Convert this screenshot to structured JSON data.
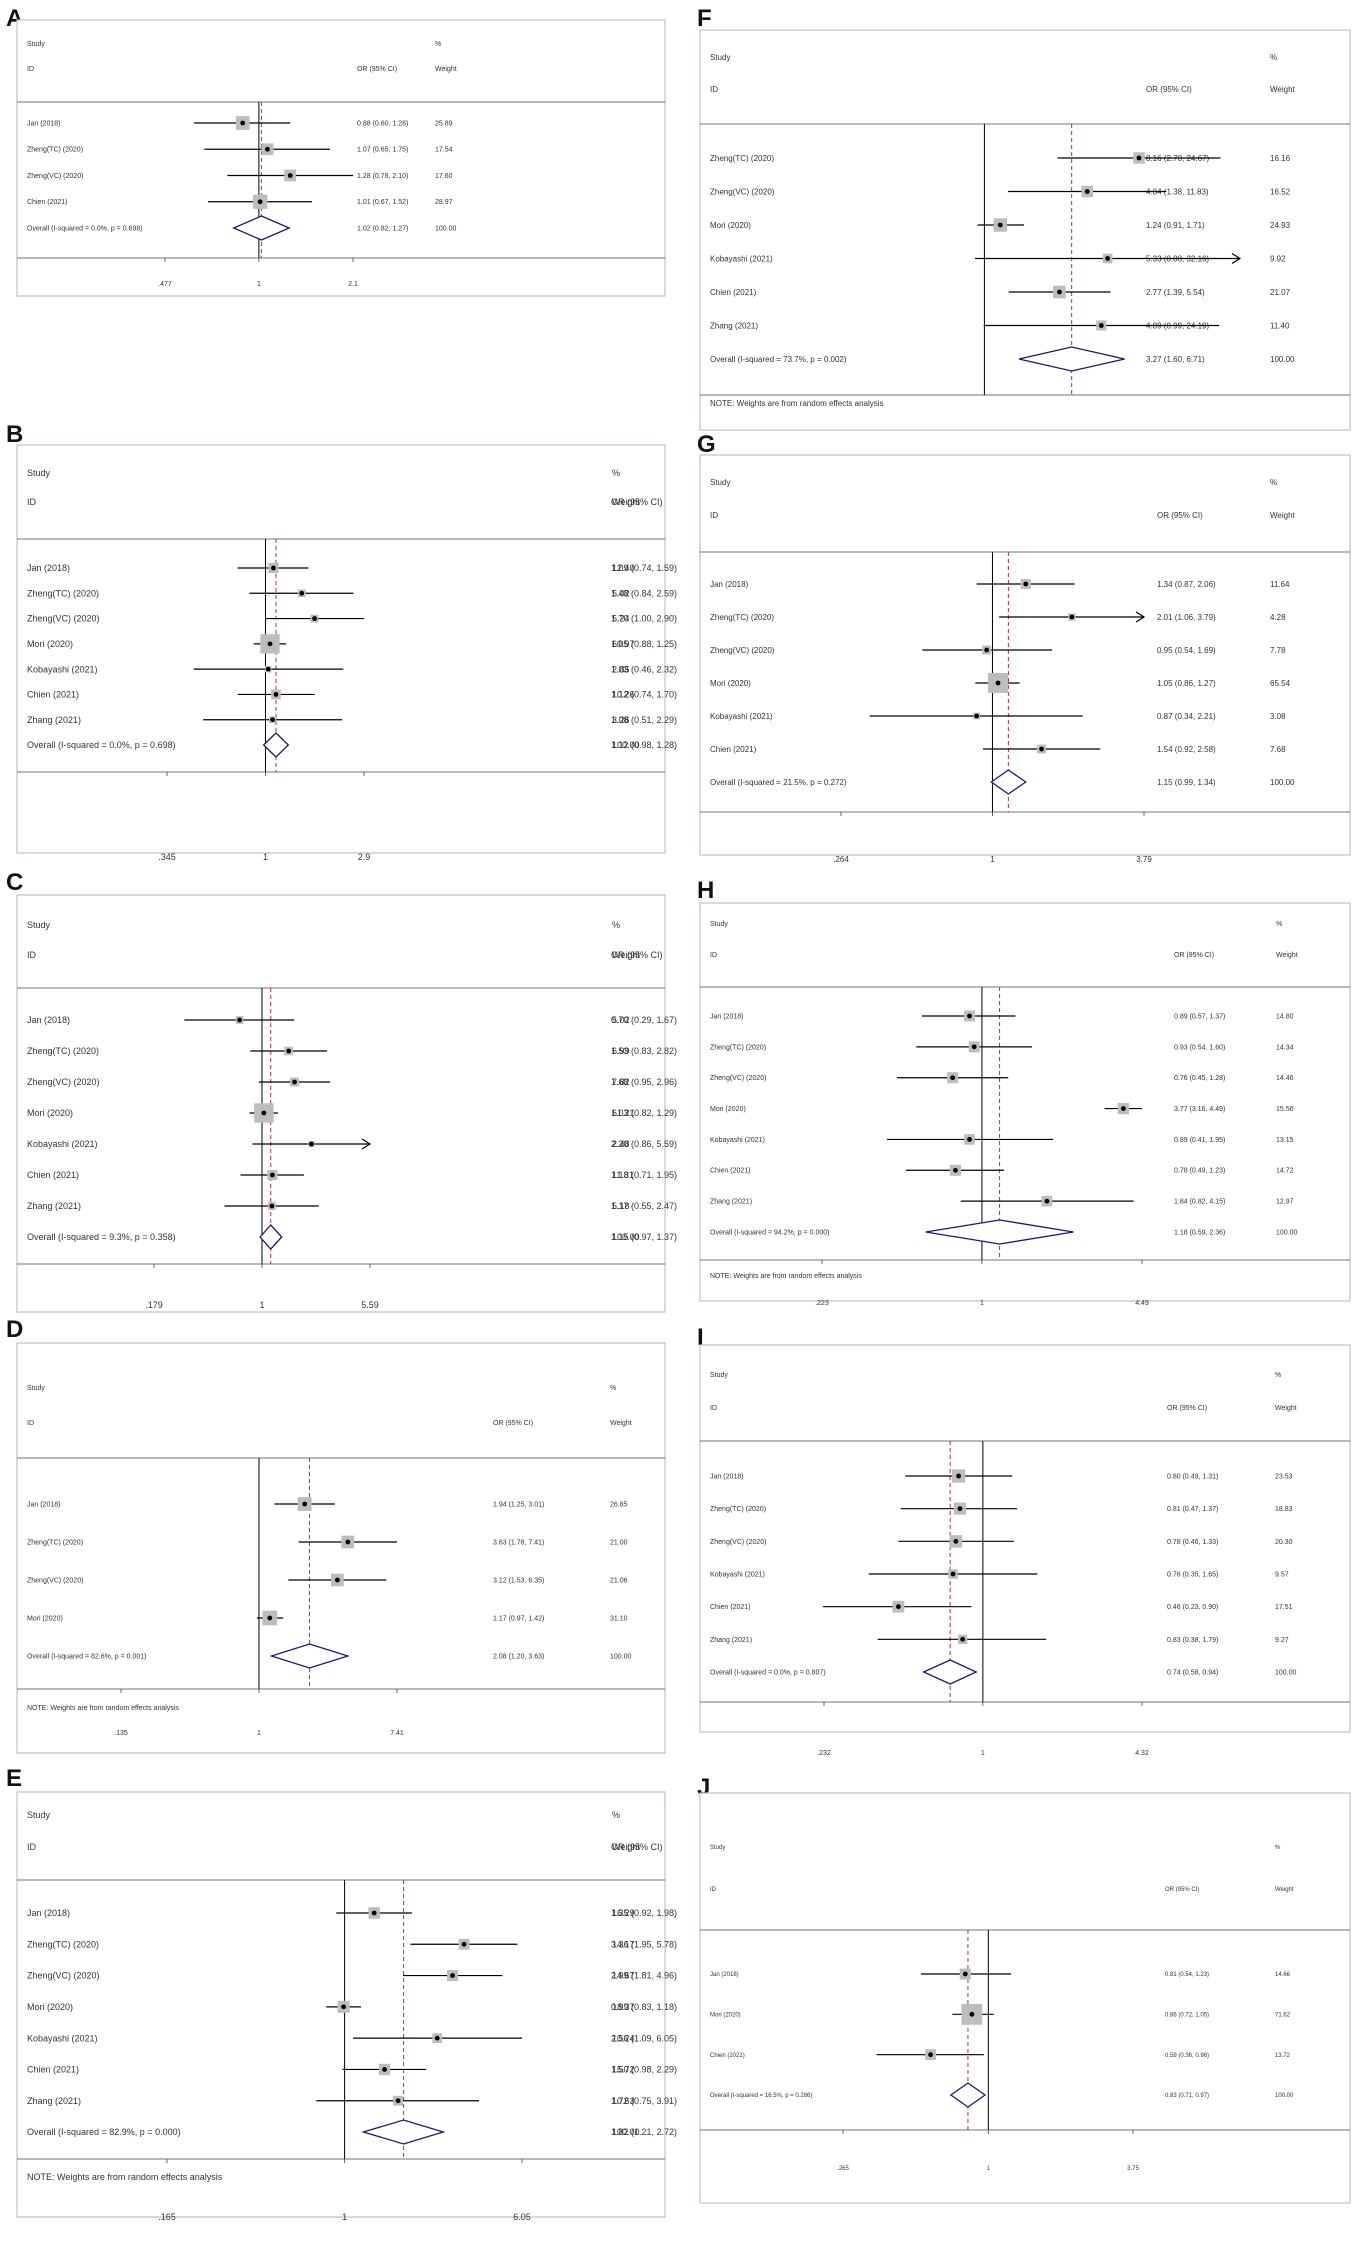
{
  "figure": {
    "background": "#ffffff",
    "panel_bg": "#ffffff",
    "frame_color": "#b8c4cc",
    "line_color": "#000000",
    "ref_color": "#b03040",
    "diamond_color": "#1a1a6e",
    "box_color": "#bdbdbd"
  },
  "chart_data": [
    {
      "type": "forest",
      "panel": "A",
      "measure": "OR (95% CI)",
      "header": {
        "study": "Study",
        "id": "ID",
        "pct": "%",
        "weight": "Weight"
      },
      "xlim": [
        0.477,
        2.1
      ],
      "ticks": [
        {
          "v": 0.477,
          "t": ".477"
        },
        {
          "v": 1,
          "t": "1"
        },
        {
          "v": 2.1,
          "t": "2.1"
        }
      ],
      "note": "",
      "studies": [
        {
          "name": "Jan  (2018)",
          "or": 0.88,
          "lo": 0.6,
          "hi": 1.28,
          "ci": "0.88 (0.60, 1.28)",
          "weight": "25.89",
          "w": 25.89
        },
        {
          "name": "Zheng(TC) (2020)",
          "or": 1.07,
          "lo": 0.65,
          "hi": 1.75,
          "ci": "1.07 (0.65, 1.75)",
          "weight": "17.54",
          "w": 17.54
        },
        {
          "name": "Zheng(VC) (2020)",
          "or": 1.28,
          "lo": 0.78,
          "hi": 2.1,
          "ci": "1.28 (0.78, 2.10)",
          "weight": "17.60",
          "w": 17.6
        },
        {
          "name": "Chien  (2021)",
          "or": 1.01,
          "lo": 0.67,
          "hi": 1.52,
          "ci": "1.01 (0.67, 1.52)",
          "weight": "28.97",
          "w": 28.97
        }
      ],
      "overall": {
        "label": "Overall  (I-squared = 0.0%, p = 0.698)",
        "or": 1.02,
        "lo": 0.82,
        "hi": 1.27,
        "ci": "1.02 (0.82, 1.27)",
        "weight": "100.00"
      }
    },
    {
      "type": "forest",
      "panel": "B",
      "measure": "OR (95% CI)",
      "header": {
        "study": "Study",
        "id": "ID",
        "pct": "%",
        "weight": "Weight"
      },
      "xlim": [
        0.345,
        2.9
      ],
      "ticks": [
        {
          "v": 0.345,
          "t": ".345"
        },
        {
          "v": 1,
          "t": "1"
        },
        {
          "v": 2.9,
          "t": "2.9"
        }
      ],
      "note": "",
      "studies": [
        {
          "name": "Jan  (2018)",
          "or": 1.09,
          "lo": 0.74,
          "hi": 1.59,
          "ci": "1.09 (0.74, 1.59)",
          "weight": "12.40",
          "w": 12.4
        },
        {
          "name": "Zheng(TC) (2020)",
          "or": 1.48,
          "lo": 0.84,
          "hi": 2.59,
          "ci": "1.48 (0.84, 2.59)",
          "weight": "5.02",
          "w": 5.02
        },
        {
          "name": "Zheng(VC) (2020)",
          "or": 1.7,
          "lo": 1.0,
          "hi": 2.9,
          "ci": "1.70 (1.00, 2.90)",
          "weight": "5.24",
          "w": 5.24
        },
        {
          "name": "Mori (2020)",
          "or": 1.05,
          "lo": 0.88,
          "hi": 1.25,
          "ci": "1.05 (0.88, 1.25)",
          "weight": "60.97",
          "w": 60.97
        },
        {
          "name": "Kobayashi  (2021)",
          "or": 1.03,
          "lo": 0.46,
          "hi": 2.32,
          "ci": "1.03 (0.46, 2.32)",
          "weight": "2.85",
          "w": 2.85
        },
        {
          "name": "Chien  (2021)",
          "or": 1.12,
          "lo": 0.74,
          "hi": 1.7,
          "ci": "1.12 (0.74, 1.70)",
          "weight": "10.26",
          "w": 10.26
        },
        {
          "name": "Zhang  (2021)",
          "or": 1.08,
          "lo": 0.51,
          "hi": 2.29,
          "ci": "1.08 (0.51, 2.29)",
          "weight": "3.26",
          "w": 3.26
        }
      ],
      "overall": {
        "label": "Overall  (I-squared = 0.0%, p = 0.698)",
        "or": 1.12,
        "lo": 0.98,
        "hi": 1.28,
        "ci": "1.12 (0.98, 1.28)",
        "weight": "100.00"
      }
    },
    {
      "type": "forest",
      "panel": "C",
      "measure": "OR (95% CI)",
      "header": {
        "study": "Study",
        "id": "ID",
        "pct": "%",
        "weight": "Weight"
      },
      "xlim": [
        0.179,
        5.59
      ],
      "ticks": [
        {
          "v": 0.179,
          "t": ".179"
        },
        {
          "v": 1,
          "t": "1"
        },
        {
          "v": 5.59,
          "t": "5.59"
        }
      ],
      "note": "",
      "studies": [
        {
          "name": "Jan  (2018)",
          "or": 0.7,
          "lo": 0.29,
          "hi": 1.67,
          "ci": "0.70 (0.29, 1.67)",
          "weight": "5.02",
          "w": 5.02
        },
        {
          "name": "Zheng(TC) (2020)",
          "or": 1.53,
          "lo": 0.83,
          "hi": 2.82,
          "ci": "1.53 (0.83, 2.82)",
          "weight": "6.99",
          "w": 6.99
        },
        {
          "name": "Zheng(VC) (2020)",
          "or": 1.68,
          "lo": 0.95,
          "hi": 2.96,
          "ci": "1.68 (0.95, 2.96)",
          "weight": "7.82",
          "w": 7.82
        },
        {
          "name": "Mori (2020)",
          "or": 1.03,
          "lo": 0.82,
          "hi": 1.29,
          "ci": "1.03 (0.82, 1.29)",
          "weight": "61.21",
          "w": 61.21
        },
        {
          "name": "Kobayashi  (2021)",
          "or": 2.2,
          "lo": 0.86,
          "hi": 5.59,
          "ci": "2.20 (0.86, 5.59)",
          "weight": "2.48",
          "w": 2.48,
          "arrow": true
        },
        {
          "name": "Chien  (2021)",
          "or": 1.18,
          "lo": 0.71,
          "hi": 1.95,
          "ci": "1.18 (0.71, 1.95)",
          "weight": "11.31",
          "w": 11.31
        },
        {
          "name": "Zhang  (2021)",
          "or": 1.17,
          "lo": 0.55,
          "hi": 2.47,
          "ci": "1.17 (0.55, 2.47)",
          "weight": "5.18",
          "w": 5.18
        }
      ],
      "overall": {
        "label": "Overall  (I-squared = 9.3%, p = 0.358)",
        "or": 1.15,
        "lo": 0.97,
        "hi": 1.37,
        "ci": "1.15 (0.97, 1.37)",
        "weight": "100.00"
      }
    },
    {
      "type": "forest",
      "panel": "D",
      "measure": "OR (95% CI)",
      "header": {
        "study": "Study",
        "id": "ID",
        "pct": "%",
        "weight": "Weight"
      },
      "xlim": [
        0.135,
        7.41
      ],
      "ticks": [
        {
          "v": 0.135,
          "t": ".135"
        },
        {
          "v": 1,
          "t": "1"
        },
        {
          "v": 7.41,
          "t": "7.41"
        }
      ],
      "note": "NOTE: Weights are from random effects analysis",
      "studies": [
        {
          "name": "Jan  (2018)",
          "or": 1.94,
          "lo": 1.25,
          "hi": 3.01,
          "ci": "1.94 (1.25, 3.01)",
          "weight": "26.85",
          "w": 26.85
        },
        {
          "name": "Zheng(TC) (2020)",
          "or": 3.63,
          "lo": 1.78,
          "hi": 7.41,
          "ci": "3.63 (1.78, 7.41)",
          "weight": "21.00",
          "w": 21.0
        },
        {
          "name": "Zheng(VC) (2020)",
          "or": 3.12,
          "lo": 1.53,
          "hi": 6.35,
          "ci": "3.12 (1.53, 6.35)",
          "weight": "21.06",
          "w": 21.06
        },
        {
          "name": "Mori (2020)",
          "or": 1.17,
          "lo": 0.97,
          "hi": 1.42,
          "ci": "1.17 (0.97, 1.42)",
          "weight": "31.10",
          "w": 31.1
        }
      ],
      "overall": {
        "label": "Overall  (I-squared = 82.6%, p = 0.001)",
        "or": 2.08,
        "lo": 1.2,
        "hi": 3.63,
        "ci": "2.08 (1.20, 3.63)",
        "weight": "100.00"
      }
    },
    {
      "type": "forest",
      "panel": "E",
      "measure": "OR (95% CI)",
      "header": {
        "study": "Study",
        "id": "ID",
        "pct": "%",
        "weight": "Weight"
      },
      "xlim": [
        0.165,
        6.05
      ],
      "ticks": [
        {
          "v": 0.165,
          "t": ".165"
        },
        {
          "v": 1,
          "t": "1"
        },
        {
          "v": 6.05,
          "t": "6.05"
        }
      ],
      "note": "NOTE: Weights are from random effects analysis",
      "studies": [
        {
          "name": "Jan  (2018)",
          "or": 1.35,
          "lo": 0.92,
          "hi": 1.98,
          "ci": "1.35 (0.92, 1.98)",
          "weight": "16.29",
          "w": 16.29
        },
        {
          "name": "Zheng(TC) (2020)",
          "or": 3.36,
          "lo": 1.95,
          "hi": 5.78,
          "ci": "3.36 (1.95, 5.78)",
          "weight": "14.17",
          "w": 14.17
        },
        {
          "name": "Zheng(VC) (2020)",
          "or": 2.99,
          "lo": 1.81,
          "hi": 4.96,
          "ci": "2.99 (1.81, 4.96)",
          "weight": "14.67",
          "w": 14.67
        },
        {
          "name": "Mori (2020)",
          "or": 0.99,
          "lo": 0.83,
          "hi": 1.18,
          "ci": "0.99 (0.83, 1.18)",
          "weight": "18.37",
          "w": 18.37
        },
        {
          "name": "Kobayashi  (2021)",
          "or": 2.56,
          "lo": 1.09,
          "hi": 6.05,
          "ci": "2.56 (1.09, 6.05)",
          "weight": "10.24",
          "w": 10.24
        },
        {
          "name": "Chien  (2021)",
          "or": 1.5,
          "lo": 0.98,
          "hi": 2.29,
          "ci": "1.50 (0.98, 2.29)",
          "weight": "15.72",
          "w": 15.72
        },
        {
          "name": "Zhang  (2021)",
          "or": 1.72,
          "lo": 0.75,
          "hi": 3.91,
          "ci": "1.72 (0.75, 3.91)",
          "weight": "10.63",
          "w": 10.63
        }
      ],
      "overall": {
        "label": "Overall  (I-squared = 82.9%, p = 0.000)",
        "or": 1.82,
        "lo": 1.21,
        "hi": 2.72,
        "ci": "1.82 (1.21, 2.72)",
        "weight": "100.00"
      }
    },
    {
      "type": "forest",
      "panel": "F",
      "measure": "OR (95% CI)",
      "header": {
        "study": "Study",
        "id": "ID",
        "pct": "%",
        "weight": "Weight"
      },
      "xlim": [
        0.88,
        32.16
      ],
      "ticks": [],
      "note": "NOTE: Weights are from random effects analysis",
      "studies": [
        {
          "name": "Zheng(TC) (2020)",
          "or": 8.16,
          "lo": 2.7,
          "hi": 24.67,
          "ci": "8.16 (2.70, 24.67)",
          "weight": "16.16",
          "w": 16.16
        },
        {
          "name": "Zheng(VC) (2020)",
          "or": 4.04,
          "lo": 1.38,
          "hi": 11.83,
          "ci": "4.04 (1.38, 11.83)",
          "weight": "16.52",
          "w": 16.52
        },
        {
          "name": "Mori (2020)",
          "or": 1.24,
          "lo": 0.91,
          "hi": 1.71,
          "ci": "1.24 (0.91, 1.71)",
          "weight": "24.93",
          "w": 24.93
        },
        {
          "name": "Kobayashi  (2021)",
          "or": 5.33,
          "lo": 0.88,
          "hi": 32.16,
          "ci": "5.33 (0.88, 32.16)",
          "weight": "9.92",
          "w": 9.92,
          "arrow": true
        },
        {
          "name": "Chien  (2021)",
          "or": 2.77,
          "lo": 1.39,
          "hi": 5.54,
          "ci": "2.77 (1.39, 5.54)",
          "weight": "21.07",
          "w": 21.07
        },
        {
          "name": "Zhang  (2021)",
          "or": 4.89,
          "lo": 0.99,
          "hi": 24.19,
          "ci": "4.89 (0.99, 24.19)",
          "weight": "11.40",
          "w": 11.4
        }
      ],
      "overall": {
        "label": "Overall  (I-squared = 73.7%, p = 0.002)",
        "or": 3.27,
        "lo": 1.6,
        "hi": 6.71,
        "ci": "3.27 (1.60, 6.71)",
        "weight": "100.00"
      }
    },
    {
      "type": "forest",
      "panel": "G",
      "measure": "OR (95% CI)",
      "header": {
        "study": "Study",
        "id": "ID",
        "pct": "%",
        "weight": "Weight"
      },
      "xlim": [
        0.264,
        3.79
      ],
      "ticks": [
        {
          "v": 0.264,
          "t": ".264"
        },
        {
          "v": 1,
          "t": "1"
        },
        {
          "v": 3.79,
          "t": "3.79"
        }
      ],
      "note": "",
      "studies": [
        {
          "name": "Jan  (2018)",
          "or": 1.34,
          "lo": 0.87,
          "hi": 2.06,
          "ci": "1.34 (0.87, 2.06)",
          "weight": "11.64",
          "w": 11.64
        },
        {
          "name": "Zheng(TC) (2020)",
          "or": 2.01,
          "lo": 1.06,
          "hi": 3.79,
          "ci": "2.01 (1.06, 3.79)",
          "weight": "4.28",
          "w": 4.28,
          "arrow": true
        },
        {
          "name": "Zheng(VC) (2020)",
          "or": 0.95,
          "lo": 0.54,
          "hi": 1.69,
          "ci": "0.95 (0.54, 1.69)",
          "weight": "7.78",
          "w": 7.78
        },
        {
          "name": "Mori (2020)",
          "or": 1.05,
          "lo": 0.86,
          "hi": 1.27,
          "ci": "1.05 (0.86, 1.27)",
          "weight": "65.54",
          "w": 65.54
        },
        {
          "name": "Kobayashi  (2021)",
          "or": 0.87,
          "lo": 0.34,
          "hi": 2.21,
          "ci": "0.87 (0.34, 2.21)",
          "weight": "3.08",
          "w": 3.08
        },
        {
          "name": "Chien  (2021)",
          "or": 1.54,
          "lo": 0.92,
          "hi": 2.58,
          "ci": "1.54 (0.92, 2.58)",
          "weight": "7.68",
          "w": 7.68
        }
      ],
      "overall": {
        "label": "Overall  (I-squared = 21.5%, p = 0.272)",
        "or": 1.15,
        "lo": 0.99,
        "hi": 1.34,
        "ci": "1.15 (0.99, 1.34)",
        "weight": "100.00"
      }
    },
    {
      "type": "forest",
      "panel": "H",
      "measure": "OR (95% CI)",
      "header": {
        "study": "Study",
        "id": "ID",
        "pct": "%",
        "weight": "Weight"
      },
      "xlim": [
        0.223,
        4.49
      ],
      "ticks": [
        {
          "v": 0.223,
          "t": ".223"
        },
        {
          "v": 1,
          "t": "1"
        },
        {
          "v": 4.49,
          "t": "4.49"
        }
      ],
      "note": "NOTE: Weights are from random effects analysis",
      "studies": [
        {
          "name": "Jan  (2018)",
          "or": 0.89,
          "lo": 0.57,
          "hi": 1.37,
          "ci": "0.89 (0.57, 1.37)",
          "weight": "14.80",
          "w": 14.8
        },
        {
          "name": "Zheng(TC) (2020)",
          "or": 0.93,
          "lo": 0.54,
          "hi": 1.6,
          "ci": "0.93 (0.54, 1.60)",
          "weight": "14.34",
          "w": 14.34
        },
        {
          "name": "Zheng(VC) (2020)",
          "or": 0.76,
          "lo": 0.45,
          "hi": 1.28,
          "ci": "0.76 (0.45, 1.28)",
          "weight": "14.46",
          "w": 14.46
        },
        {
          "name": "Mori (2020)",
          "or": 3.77,
          "lo": 3.16,
          "hi": 4.49,
          "ci": "3.77 (3.16, 4.49)",
          "weight": "15.56",
          "w": 15.56
        },
        {
          "name": "Kobayashi  (2021)",
          "or": 0.89,
          "lo": 0.41,
          "hi": 1.95,
          "ci": "0.89 (0.41, 1.95)",
          "weight": "13.15",
          "w": 13.15
        },
        {
          "name": "Chien  (2021)",
          "or": 0.78,
          "lo": 0.49,
          "hi": 1.23,
          "ci": "0.78 (0.49, 1.23)",
          "weight": "14.72",
          "w": 14.72
        },
        {
          "name": "Zhang  (2021)",
          "or": 1.84,
          "lo": 0.82,
          "hi": 4.15,
          "ci": "1.84 (0.82, 4.15)",
          "weight": "12.97",
          "w": 12.97
        }
      ],
      "overall": {
        "label": "Overall  (I-squared = 94.2%, p = 0.000)",
        "or": 1.18,
        "lo": 0.59,
        "hi": 2.36,
        "ci": "1.18 (0.59, 2.36)",
        "weight": "100.00"
      }
    },
    {
      "type": "forest",
      "panel": "I",
      "measure": "OR (95% CI)",
      "header": {
        "study": "Study",
        "id": "ID",
        "pct": "%",
        "weight": "Weight"
      },
      "xlim": [
        0.232,
        4.32
      ],
      "ticks": [
        {
          "v": 0.232,
          "t": ".232"
        },
        {
          "v": 1,
          "t": "1"
        },
        {
          "v": 4.32,
          "t": "4.32"
        }
      ],
      "note": "",
      "studies": [
        {
          "name": "Jan  (2018)",
          "or": 0.8,
          "lo": 0.49,
          "hi": 1.31,
          "ci": "0.80 (0.49, 1.31)",
          "weight": "23.53",
          "w": 23.53
        },
        {
          "name": "Zheng(TC) (2020)",
          "or": 0.81,
          "lo": 0.47,
          "hi": 1.37,
          "ci": "0.81 (0.47, 1.37)",
          "weight": "18.83",
          "w": 18.83
        },
        {
          "name": "Zheng(VC) (2020)",
          "or": 0.78,
          "lo": 0.46,
          "hi": 1.33,
          "ci": "0.78 (0.46, 1.33)",
          "weight": "20.30",
          "w": 20.3
        },
        {
          "name": "Kobayashi  (2021)",
          "or": 0.76,
          "lo": 0.35,
          "hi": 1.65,
          "ci": "0.76 (0.35, 1.65)",
          "weight": "9.57",
          "w": 9.57
        },
        {
          "name": "Chien  (2021)",
          "or": 0.46,
          "lo": 0.23,
          "hi": 0.9,
          "ci": "0.46 (0.23, 0.90)",
          "weight": "17.51",
          "w": 17.51
        },
        {
          "name": "Zhang  (2021)",
          "or": 0.83,
          "lo": 0.38,
          "hi": 1.79,
          "ci": "0.83 (0.38, 1.79)",
          "weight": "9.27",
          "w": 9.27
        }
      ],
      "overall": {
        "label": "Overall  (I-squared = 0.0%, p = 0.807)",
        "or": 0.74,
        "lo": 0.58,
        "hi": 0.94,
        "ci": "0.74 (0.58, 0.94)",
        "weight": "100.00"
      }
    },
    {
      "type": "forest",
      "panel": "J",
      "measure": "OR (95% CI)",
      "header": {
        "study": "Study",
        "id": "ID",
        "pct": "%",
        "weight": "Weight"
      },
      "xlim": [
        0.265,
        3.75
      ],
      "ticks": [
        {
          "v": 0.265,
          "t": ".265"
        },
        {
          "v": 1,
          "t": "1"
        },
        {
          "v": 3.75,
          "t": "3.75"
        }
      ],
      "note": "",
      "studies": [
        {
          "name": "Jan  (2018)",
          "or": 0.81,
          "lo": 0.54,
          "hi": 1.23,
          "ci": "0.81 (0.54, 1.23)",
          "weight": "14.66",
          "w": 14.66
        },
        {
          "name": "Mori (2020)",
          "or": 0.86,
          "lo": 0.72,
          "hi": 1.05,
          "ci": "0.86 (0.72, 1.05)",
          "weight": "71.62",
          "w": 71.62
        },
        {
          "name": "Chien  (2021)",
          "or": 0.59,
          "lo": 0.36,
          "hi": 0.96,
          "ci": "0.59 (0.36, 0.96)",
          "weight": "13.72",
          "w": 13.72
        }
      ],
      "overall": {
        "label": "Overall  (I-squared = 16.5%, p = 0.286)",
        "or": 0.83,
        "lo": 0.71,
        "hi": 0.97,
        "ci": "0.83 (0.71, 0.97)",
        "weight": "100.00"
      }
    }
  ]
}
